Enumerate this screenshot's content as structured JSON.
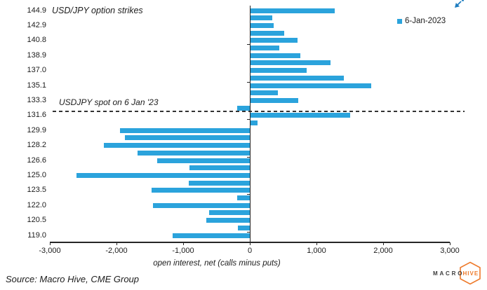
{
  "chart_data": {
    "type": "bar",
    "orientation": "horizontal",
    "title": "USD/JPY option strikes",
    "xlabel": "open interest, net (calls minus puts)",
    "legend": [
      "6-Jan-2023"
    ],
    "legend_position": "top-right",
    "xlim": [
      -3000,
      3000
    ],
    "grid": false,
    "x_ticks": [
      {
        "value": -3000,
        "label": "-3,000"
      },
      {
        "value": -2000,
        "label": "-2,000"
      },
      {
        "value": -1000,
        "label": "-1,000"
      },
      {
        "value": 0,
        "label": "0"
      },
      {
        "value": 1000,
        "label": "1,000"
      },
      {
        "value": 2000,
        "label": "2,000"
      },
      {
        "value": 3000,
        "label": "3,000"
      }
    ],
    "y_tick_labels": [
      "144.9",
      "142.9",
      "140.8",
      "138.9",
      "137.0",
      "135.1",
      "133.3",
      "131.6",
      "129.9",
      "128.2",
      "126.6",
      "125.0",
      "123.5",
      "122.0",
      "120.5",
      "119.0"
    ],
    "series": [
      {
        "name": "6-Jan-2023",
        "points": [
          {
            "strike": "144.9",
            "value": 1270
          },
          {
            "strike": "143.9",
            "value": 340
          },
          {
            "strike": "142.9",
            "value": 360
          },
          {
            "strike": "141.8",
            "value": 520
          },
          {
            "strike": "140.8",
            "value": 720
          },
          {
            "strike": "139.8",
            "value": 440
          },
          {
            "strike": "138.9",
            "value": 760
          },
          {
            "strike": "137.9",
            "value": 1210
          },
          {
            "strike": "137.0",
            "value": 850
          },
          {
            "strike": "136.0",
            "value": 1410
          },
          {
            "strike": "135.1",
            "value": 1820
          },
          {
            "strike": "134.2",
            "value": 420
          },
          {
            "strike": "133.3",
            "value": 730
          },
          {
            "strike": "132.4",
            "value": -190
          },
          {
            "strike": "131.6",
            "value": 1510
          },
          {
            "strike": "130.7",
            "value": 120
          },
          {
            "strike": "129.9",
            "value": -1950
          },
          {
            "strike": "129.0",
            "value": -1870
          },
          {
            "strike": "128.2",
            "value": -2190
          },
          {
            "strike": "127.4",
            "value": -1680
          },
          {
            "strike": "126.6",
            "value": -1390
          },
          {
            "strike": "125.8",
            "value": -910
          },
          {
            "strike": "125.0",
            "value": -2600
          },
          {
            "strike": "124.2",
            "value": -920
          },
          {
            "strike": "123.5",
            "value": -1470
          },
          {
            "strike": "122.7",
            "value": -190
          },
          {
            "strike": "122.0",
            "value": -1450
          },
          {
            "strike": "121.2",
            "value": -610
          },
          {
            "strike": "120.5",
            "value": -650
          },
          {
            "strike": "119.7",
            "value": -175
          },
          {
            "strike": "119.0",
            "value": -1160
          }
        ]
      }
    ],
    "annotations": [
      {
        "text": "USDJPY spot on 6 Jan '23",
        "type": "horizontal-dashed-line",
        "position": "between strikes 132.4 and 131.6"
      }
    ],
    "colors": {
      "bar": "#2BA3DC",
      "axis": "#262626",
      "dashed_line": "#333333"
    }
  },
  "footer": {
    "source": "Source: Macro Hive, CME Group"
  },
  "logo": {
    "macro": "MACRO",
    "hive": "HIVE",
    "orange": "#EE7A2B",
    "dark": "#3C3C3C"
  },
  "icons": {
    "expand_arrow": "down-left-arrow",
    "color": "#1E7DC0"
  }
}
